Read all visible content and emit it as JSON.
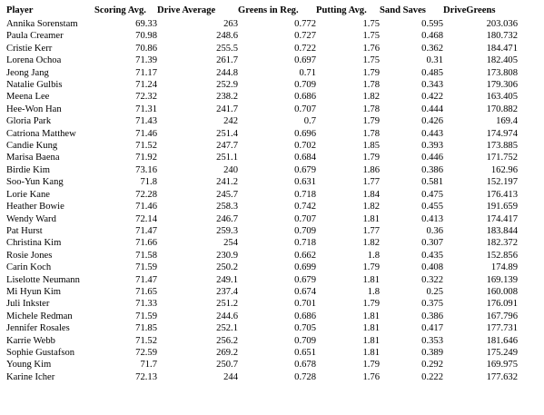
{
  "table": {
    "headers": [
      "Player",
      "Scoring Avg.",
      "Drive Average",
      "Greens in Reg.",
      "Putting Avg.",
      "Sand Saves",
      "DriveGreens"
    ],
    "rows": [
      [
        "Annika Sorenstam",
        "69.33",
        "263",
        "0.772",
        "1.75",
        "0.595",
        "203.036"
      ],
      [
        "Paula Creamer",
        "70.98",
        "248.6",
        "0.727",
        "1.75",
        "0.468",
        "180.732"
      ],
      [
        "Cristie Kerr",
        "70.86",
        "255.5",
        "0.722",
        "1.76",
        "0.362",
        "184.471"
      ],
      [
        "Lorena Ochoa",
        "71.39",
        "261.7",
        "0.697",
        "1.75",
        "0.31",
        "182.405"
      ],
      [
        "Jeong Jang",
        "71.17",
        "244.8",
        "0.71",
        "1.79",
        "0.485",
        "173.808"
      ],
      [
        "Natalie Gulbis",
        "71.24",
        "252.9",
        "0.709",
        "1.78",
        "0.343",
        "179.306"
      ],
      [
        "Meena Lee",
        "72.32",
        "238.2",
        "0.686",
        "1.82",
        "0.422",
        "163.405"
      ],
      [
        "Hee-Won Han",
        "71.31",
        "241.7",
        "0.707",
        "1.78",
        "0.444",
        "170.882"
      ],
      [
        "Gloria Park",
        "71.43",
        "242",
        "0.7",
        "1.79",
        "0.426",
        "169.4"
      ],
      [
        "Catriona Matthew",
        "71.46",
        "251.4",
        "0.696",
        "1.78",
        "0.443",
        "174.974"
      ],
      [
        "Candie Kung",
        "71.52",
        "247.7",
        "0.702",
        "1.85",
        "0.393",
        "173.885"
      ],
      [
        "Marisa Baena",
        "71.92",
        "251.1",
        "0.684",
        "1.79",
        "0.446",
        "171.752"
      ],
      [
        "Birdie Kim",
        "73.16",
        "240",
        "0.679",
        "1.86",
        "0.386",
        "162.96"
      ],
      [
        "Soo-Yun Kang",
        "71.8",
        "241.2",
        "0.631",
        "1.77",
        "0.581",
        "152.197"
      ],
      [
        "Lorie Kane",
        "72.28",
        "245.7",
        "0.718",
        "1.84",
        "0.475",
        "176.413"
      ],
      [
        "Heather Bowie",
        "71.46",
        "258.3",
        "0.742",
        "1.82",
        "0.455",
        "191.659"
      ],
      [
        "Wendy Ward",
        "72.14",
        "246.7",
        "0.707",
        "1.81",
        "0.413",
        "174.417"
      ],
      [
        "Pat Hurst",
        "71.47",
        "259.3",
        "0.709",
        "1.77",
        "0.36",
        "183.844"
      ],
      [
        "Christina Kim",
        "71.66",
        "254",
        "0.718",
        "1.82",
        "0.307",
        "182.372"
      ],
      [
        "Rosie Jones",
        "71.58",
        "230.9",
        "0.662",
        "1.8",
        "0.435",
        "152.856"
      ],
      [
        "Carin Koch",
        "71.59",
        "250.2",
        "0.699",
        "1.79",
        "0.408",
        "174.89"
      ],
      [
        "Liselotte Neumann",
        "71.47",
        "249.1",
        "0.679",
        "1.81",
        "0.322",
        "169.139"
      ],
      [
        "Mi Hyun Kim",
        "71.65",
        "237.4",
        "0.674",
        "1.8",
        "0.25",
        "160.008"
      ],
      [
        "Juli Inkster",
        "71.33",
        "251.2",
        "0.701",
        "1.79",
        "0.375",
        "176.091"
      ],
      [
        "Michele Redman",
        "71.59",
        "244.6",
        "0.686",
        "1.81",
        "0.386",
        "167.796"
      ],
      [
        "Jennifer Rosales",
        "71.85",
        "252.1",
        "0.705",
        "1.81",
        "0.417",
        "177.731"
      ],
      [
        "Karrie Webb",
        "71.52",
        "256.2",
        "0.709",
        "1.81",
        "0.353",
        "181.646"
      ],
      [
        "Sophie Gustafson",
        "72.59",
        "269.2",
        "0.651",
        "1.81",
        "0.389",
        "175.249"
      ],
      [
        "Young Kim",
        "71.7",
        "250.7",
        "0.678",
        "1.79",
        "0.292",
        "169.975"
      ],
      [
        "Karine Icher",
        "72.13",
        "244",
        "0.728",
        "1.76",
        "0.222",
        "177.632"
      ]
    ]
  }
}
